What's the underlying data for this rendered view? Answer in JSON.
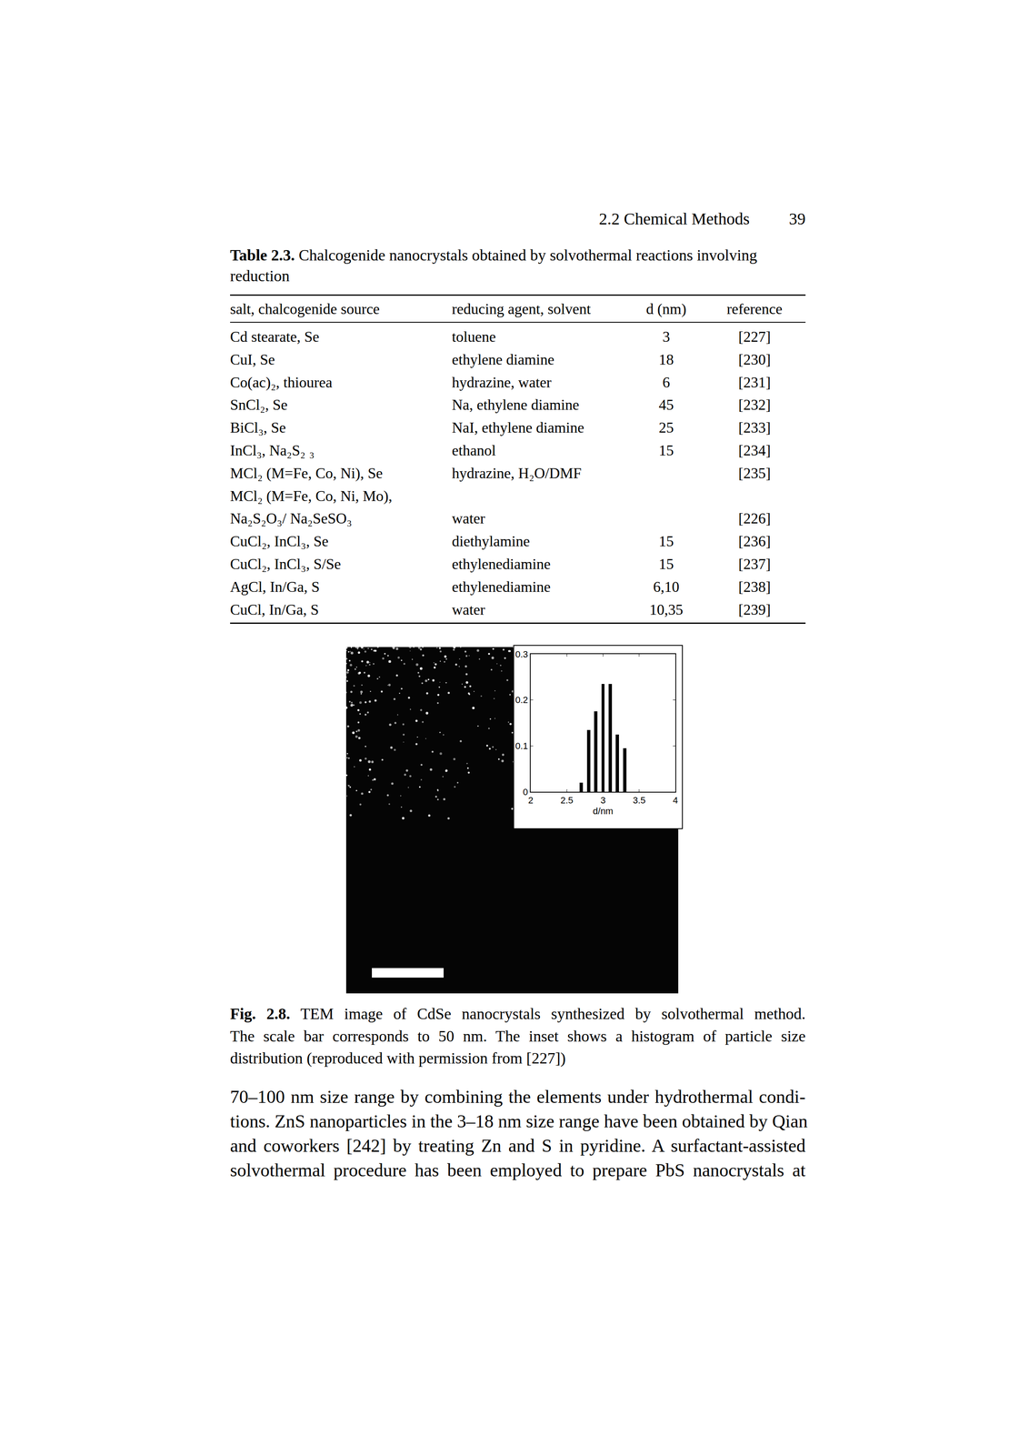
{
  "header": {
    "section": "2.2 Chemical Methods",
    "page": "39"
  },
  "table": {
    "label": "Table 2.3.",
    "caption": [
      "Chalcogenide nanocrystals obtained by solvothermal reactions involving",
      "reduction"
    ],
    "columns": [
      "salt, chalcogenide source",
      "reducing agent, solvent",
      "d (nm)",
      "reference"
    ],
    "rows": [
      [
        "Cd stearate, Se",
        "toluene",
        "3",
        "[227]"
      ],
      [
        "CuI, Se",
        "ethylene diamine",
        "18",
        "[230]"
      ],
      [
        "Co(ac)₂, thiourea",
        "hydrazine, water",
        "6",
        "[231]"
      ],
      [
        "SnCl₂, Se",
        "Na, ethylene diamine",
        "45",
        "[232]"
      ],
      [
        "BiCl₃, Se",
        "NaI, ethylene diamine",
        "25",
        "[233]"
      ],
      [
        "InCl₃, Na₂S₂ ₃",
        "ethanol",
        "15",
        "[234]"
      ],
      [
        "MCl₂ (M=Fe, Co, Ni), Se",
        "hydrazine, H₂O/DMF",
        null,
        "[235]"
      ],
      [
        "MCl₂ (M=Fe, Co, Ni, Mo),\nNa₂S₂O₃/ Na₂SeSO₃",
        "water",
        null,
        "[226]"
      ],
      [
        "CuCl₂, InCl₃, Se",
        "diethylamine",
        "15",
        "[236]"
      ],
      [
        "CuCl₂, InCl₃, S/Se",
        "ethylenediamine",
        "15",
        "[237]"
      ],
      [
        "AgCl, In/Ga, S",
        "ethylenediamine",
        "6,10",
        "[238]"
      ],
      [
        "CuCl, In/Ga, S",
        "water",
        "10,35",
        "[239]"
      ]
    ]
  },
  "chart_data": {
    "type": "bar",
    "x": [
      2.7,
      2.8,
      2.9,
      3.0,
      3.1,
      3.2,
      3.3
    ],
    "values": [
      0.02,
      0.135,
      0.175,
      0.235,
      0.235,
      0.125,
      0.095
    ],
    "color": "#000000",
    "x_label": "d/nm",
    "xlim": [
      2,
      4
    ],
    "xticks": [
      2,
      2.5,
      3,
      3.5,
      4
    ],
    "ylim": [
      0,
      0.3
    ],
    "yticks": [
      0,
      0.1,
      0.2,
      0.3
    ],
    "grid": false
  },
  "figure_caption": {
    "label": "Fig. 2.8.",
    "lines": [
      "TEM image of CdSe nanocrystals synthesized by solvothermal method.",
      "The scale bar corresponds to 50 nm. The inset shows a histogram of particle size",
      "distribution (reproduced with permission from [227])"
    ]
  },
  "body_text": [
    "70–100 nm size range by combining the elements under hydrothermal condi-",
    "tions. ZnS nanoparticles in the 3–18 nm size range have been obtained by Qian",
    "and coworkers [242] by treating Zn and S in pyridine. A surfactant-assisted",
    "solvothermal procedure has been employed to prepare PbS nanocrystals at"
  ]
}
